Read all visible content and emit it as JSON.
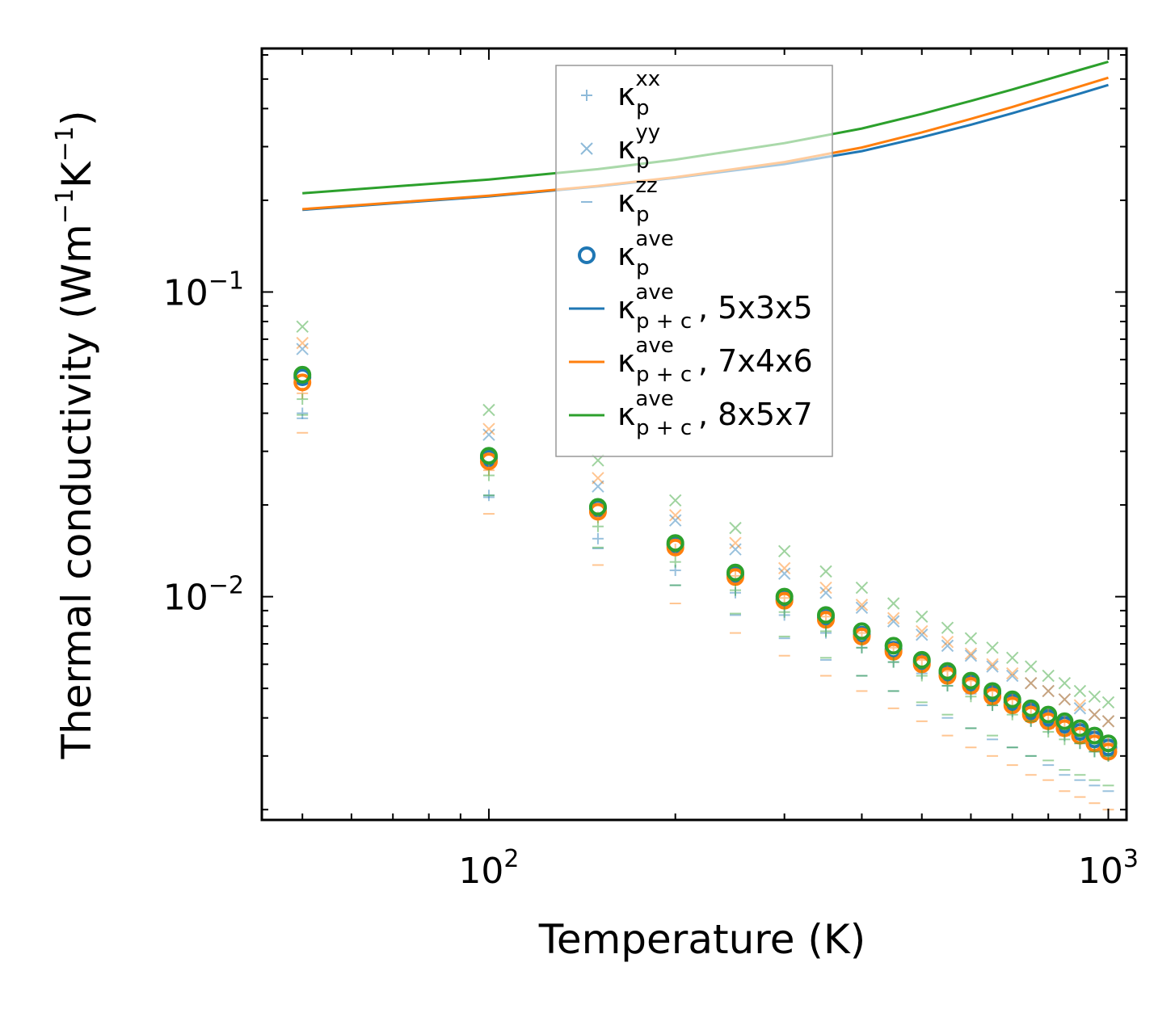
{
  "chart_data": {
    "type": "scatter",
    "title": "",
    "xlabel": "Temperature (K)",
    "ylabel": {
      "base": "Thermal conductivity (Wm",
      "exp1": "−1",
      "mid": "K",
      "exp2": "−1",
      "end": ")"
    },
    "xscale": "log",
    "yscale": "log",
    "xlim": [
      43,
      1070
    ],
    "ylim": [
      0.00185,
      0.63
    ],
    "xticks": [
      {
        "value": 100,
        "base": "10",
        "exp": "2"
      },
      {
        "value": 1000,
        "base": "10",
        "exp": "3"
      }
    ],
    "yticks": [
      {
        "value": 0.01,
        "base": "10",
        "exp": "−2"
      },
      {
        "value": 0.1,
        "base": "10",
        "exp": "−1"
      }
    ],
    "temperatures": [
      50,
      100,
      150,
      200,
      250,
      300,
      350,
      400,
      450,
      500,
      550,
      600,
      650,
      700,
      750,
      800,
      850,
      900,
      950,
      1000
    ],
    "lines": [
      {
        "name": "5x3x5",
        "color": "#1f77b4",
        "x": [
          50,
          100,
          150,
          200,
          300,
          400,
          500,
          600,
          700,
          800,
          900,
          1000
        ],
        "y": [
          0.186,
          0.206,
          0.222,
          0.237,
          0.263,
          0.29,
          0.322,
          0.354,
          0.386,
          0.418,
          0.448,
          0.478
        ]
      },
      {
        "name": "7x4x6",
        "color": "#ff7f0e",
        "x": [
          50,
          100,
          150,
          200,
          300,
          400,
          500,
          600,
          700,
          800,
          900,
          1000
        ],
        "y": [
          0.187,
          0.207,
          0.223,
          0.238,
          0.267,
          0.298,
          0.334,
          0.37,
          0.405,
          0.44,
          0.473,
          0.505
        ]
      },
      {
        "name": "8x5x7",
        "color": "#2ca02c",
        "x": [
          50,
          100,
          150,
          200,
          300,
          400,
          500,
          600,
          700,
          800,
          900,
          1000
        ],
        "y": [
          0.211,
          0.234,
          0.253,
          0.272,
          0.308,
          0.344,
          0.384,
          0.424,
          0.462,
          0.5,
          0.536,
          0.57
        ]
      }
    ],
    "series": [
      {
        "name": "5x3x5",
        "color": "#1f77b4",
        "ave": [
          0.0525,
          0.0285,
          0.0195,
          0.0148,
          0.0118,
          0.0098,
          0.0085,
          0.0075,
          0.0067,
          0.0061,
          0.0056,
          0.0052,
          0.0048,
          0.0045,
          0.0042,
          0.004,
          0.0038,
          0.0036,
          0.0034,
          0.0032
        ],
        "xx": [
          0.04,
          0.0215,
          0.0155,
          0.0122,
          0.0103,
          0.0087,
          0.0076,
          0.0068,
          0.0061,
          0.0056,
          0.0051,
          0.0048,
          0.0044,
          0.0042,
          0.0039,
          0.0037,
          0.0035,
          0.0033,
          0.0031,
          0.003
        ],
        "yy": [
          0.065,
          0.034,
          0.023,
          0.0178,
          0.0143,
          0.0119,
          0.0103,
          0.0092,
          0.0083,
          0.0075,
          0.0069,
          0.0064,
          0.0059,
          0.0055,
          0.0052,
          0.0049,
          0.0046,
          0.0043,
          0.0041,
          0.0039
        ],
        "zz": [
          0.0385,
          0.0212,
          0.0144,
          0.0109,
          0.0087,
          0.0073,
          0.0062,
          0.0055,
          0.0049,
          0.0044,
          0.004,
          0.0037,
          0.0034,
          0.0032,
          0.003,
          0.0028,
          0.0026,
          0.0025,
          0.0024,
          0.0023
        ]
      },
      {
        "name": "7x4x6",
        "color": "#ff7f0e",
        "ave": [
          0.0505,
          0.0278,
          0.019,
          0.0145,
          0.0116,
          0.0097,
          0.0084,
          0.0074,
          0.0066,
          0.006,
          0.0055,
          0.0051,
          0.0047,
          0.0044,
          0.0041,
          0.0039,
          0.0037,
          0.0035,
          0.0033,
          0.0031
        ],
        "xx": [
          0.0465,
          0.026,
          0.0182,
          0.0143,
          0.0117,
          0.0099,
          0.0086,
          0.0076,
          0.0068,
          0.0062,
          0.0057,
          0.0053,
          0.0049,
          0.0046,
          0.0043,
          0.0041,
          0.0039,
          0.0037,
          0.0035,
          0.0033
        ],
        "yy": [
          0.068,
          0.0355,
          0.0245,
          0.0185,
          0.015,
          0.0124,
          0.0107,
          0.0094,
          0.0085,
          0.0077,
          0.0071,
          0.0065,
          0.006,
          0.0056,
          0.0052,
          0.0049,
          0.0046,
          0.0044,
          0.0041,
          0.0039
        ],
        "zz": [
          0.0345,
          0.0187,
          0.0127,
          0.0095,
          0.0076,
          0.0064,
          0.0055,
          0.0049,
          0.0043,
          0.0039,
          0.0035,
          0.0032,
          0.003,
          0.0028,
          0.0026,
          0.0025,
          0.0023,
          0.0022,
          0.0021,
          0.002
        ]
      },
      {
        "name": "8x5x7",
        "color": "#2ca02c",
        "ave": [
          0.0535,
          0.029,
          0.0197,
          0.015,
          0.012,
          0.01,
          0.0087,
          0.0077,
          0.0069,
          0.0062,
          0.0057,
          0.0053,
          0.0049,
          0.0046,
          0.0043,
          0.0041,
          0.0039,
          0.0037,
          0.0035,
          0.0033
        ],
        "xx": [
          0.0445,
          0.025,
          0.017,
          0.013,
          0.0105,
          0.0089,
          0.0077,
          0.0068,
          0.0061,
          0.0055,
          0.0051,
          0.0047,
          0.0044,
          0.0041,
          0.0039,
          0.0036,
          0.0034,
          0.0033,
          0.0031,
          0.003
        ],
        "yy": [
          0.077,
          0.041,
          0.028,
          0.0207,
          0.0168,
          0.0141,
          0.0121,
          0.0107,
          0.0095,
          0.0086,
          0.0079,
          0.0073,
          0.0068,
          0.0063,
          0.0059,
          0.0055,
          0.0052,
          0.0049,
          0.0047,
          0.0045
        ],
        "zz": [
          0.0395,
          0.0215,
          0.0145,
          0.0109,
          0.0088,
          0.0074,
          0.0063,
          0.0055,
          0.0049,
          0.0045,
          0.0041,
          0.0037,
          0.0035,
          0.0032,
          0.003,
          0.0029,
          0.0027,
          0.0026,
          0.0025,
          0.0024
        ]
      }
    ],
    "legend": {
      "placement": "upper-center",
      "entries": [
        {
          "marker": "plus",
          "color": "#1f77b4",
          "base": "κ",
          "sub": "p",
          "sup": "xx",
          "suffix": ""
        },
        {
          "marker": "x",
          "color": "#1f77b4",
          "base": "κ",
          "sub": "p",
          "sup": "yy",
          "suffix": ""
        },
        {
          "marker": "dash",
          "color": "#1f77b4",
          "base": "κ",
          "sub": "p",
          "sup": "zz",
          "suffix": ""
        },
        {
          "marker": "circle",
          "color": "#1f77b4",
          "base": "κ",
          "sub": "p",
          "sup": "ave",
          "suffix": ""
        },
        {
          "marker": "line",
          "color": "#1f77b4",
          "base": "κ",
          "sub": "p + c",
          "sup": "ave",
          "suffix": ", 5x3x5"
        },
        {
          "marker": "line",
          "color": "#ff7f0e",
          "base": "κ",
          "sub": "p + c",
          "sup": "ave",
          "suffix": ", 7x4x6"
        },
        {
          "marker": "line",
          "color": "#2ca02c",
          "base": "κ",
          "sub": "p + c",
          "sup": "ave",
          "suffix": ", 8x5x7"
        }
      ]
    }
  }
}
